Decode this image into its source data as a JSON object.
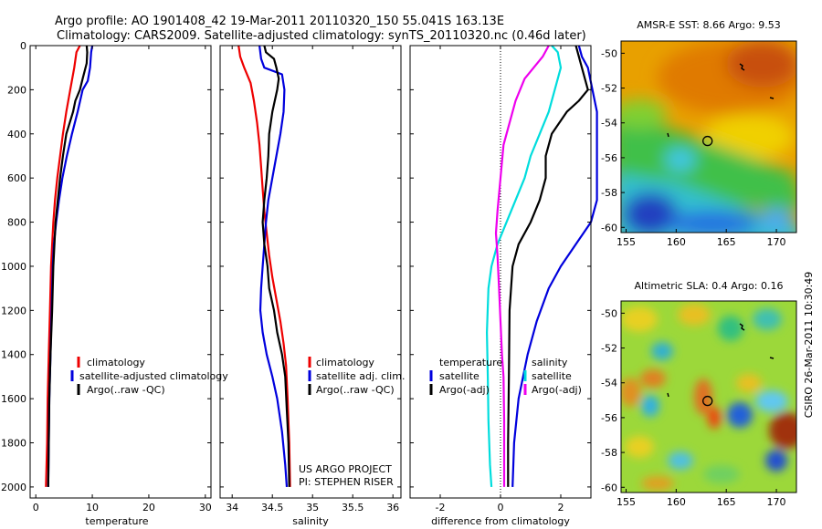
{
  "header": {
    "line1": "Argo profile: AO 1901408_42 19-Mar-2011 20110320_150 55.041S 163.13E",
    "line2": "Climatology: CARS2009. Satellite-adjusted climatology: synTS_20110320.nc (0.46d later)"
  },
  "credit": {
    "project": "US ARGO PROJECT",
    "pi": "PI: STEPHEN RISER",
    "stamp": "CSIRO 26-Mar-2011 10:30:49"
  },
  "colors": {
    "climatology": "#ee0000",
    "satellite": "#0000dd",
    "argo": "#000000",
    "sat_salinity": "#00dddd",
    "argo_salinity_diff": "#ee00ee"
  },
  "chart_data": [
    {
      "type": "line",
      "xlabel": "temperature",
      "xlim": [
        -1,
        31
      ],
      "xticks": [
        "0",
        "10",
        "20",
        "30"
      ],
      "ylim": [
        0,
        2050
      ],
      "yticks": [
        "0",
        "200",
        "400",
        "600",
        "800",
        "1000",
        "1200",
        "1400",
        "1600",
        "1800",
        "2000"
      ],
      "y_reversed": true,
      "legend": [
        "climatology",
        "satellite-adjusted climatology",
        "Argo(..raw -QC)"
      ],
      "series": [
        {
          "name": "climatology",
          "color": "#ee0000",
          "points": [
            [
              7.8,
              0
            ],
            [
              7.2,
              30
            ],
            [
              6.8,
              100
            ],
            [
              6.1,
              200
            ],
            [
              5.4,
              300
            ],
            [
              4.8,
              400
            ],
            [
              4.3,
              500
            ],
            [
              3.8,
              600
            ],
            [
              3.4,
              700
            ],
            [
              3.1,
              800
            ],
            [
              2.9,
              900
            ],
            [
              2.7,
              1000
            ],
            [
              2.5,
              1200
            ],
            [
              2.3,
              1400
            ],
            [
              2.1,
              1600
            ],
            [
              2.0,
              1800
            ],
            [
              1.8,
              2000
            ]
          ]
        },
        {
          "name": "satellite-adjusted climatology",
          "color": "#0000dd",
          "points": [
            [
              10.0,
              0
            ],
            [
              9.8,
              30
            ],
            [
              9.6,
              100
            ],
            [
              9.2,
              160
            ],
            [
              8.3,
              200
            ],
            [
              7.4,
              300
            ],
            [
              6.4,
              400
            ],
            [
              5.5,
              500
            ],
            [
              4.7,
              600
            ],
            [
              4.1,
              700
            ],
            [
              3.6,
              800
            ],
            [
              3.2,
              900
            ],
            [
              3.0,
              1000
            ],
            [
              2.8,
              1200
            ],
            [
              2.6,
              1400
            ],
            [
              2.4,
              1600
            ],
            [
              2.3,
              1800
            ],
            [
              2.2,
              2000
            ]
          ]
        },
        {
          "name": "Argo(..raw -QC)",
          "color": "#000000",
          "points": [
            [
              9.0,
              0
            ],
            [
              9.1,
              30
            ],
            [
              9.0,
              80
            ],
            [
              8.3,
              150
            ],
            [
              7.8,
              200
            ],
            [
              7.0,
              250
            ],
            [
              6.6,
              300
            ],
            [
              6.0,
              350
            ],
            [
              5.4,
              400
            ],
            [
              4.8,
              500
            ],
            [
              4.3,
              600
            ],
            [
              3.9,
              700
            ],
            [
              3.5,
              800
            ],
            [
              3.3,
              900
            ],
            [
              3.1,
              1000
            ],
            [
              2.9,
              1200
            ],
            [
              2.6,
              1400
            ],
            [
              2.4,
              1600
            ],
            [
              2.3,
              1800
            ],
            [
              2.2,
              2000
            ]
          ]
        }
      ]
    },
    {
      "type": "line",
      "xlabel": "salinity",
      "xlim": [
        33.85,
        36.1
      ],
      "xticks": [
        "34",
        "34.5",
        "35",
        "35.5",
        "36"
      ],
      "ylim": [
        0,
        2050
      ],
      "y_reversed": true,
      "legend": [
        "climatology",
        "satellite adj. clim.",
        "Argo(..raw -QC)"
      ],
      "series": [
        {
          "name": "climatology",
          "color": "#ee0000",
          "points": [
            [
              34.08,
              0
            ],
            [
              34.1,
              50
            ],
            [
              34.15,
              100
            ],
            [
              34.23,
              170
            ],
            [
              34.27,
              250
            ],
            [
              34.31,
              350
            ],
            [
              34.34,
              450
            ],
            [
              34.36,
              550
            ],
            [
              34.38,
              650
            ],
            [
              34.4,
              750
            ],
            [
              34.43,
              850
            ],
            [
              34.46,
              950
            ],
            [
              34.5,
              1050
            ],
            [
              34.55,
              1150
            ],
            [
              34.6,
              1250
            ],
            [
              34.64,
              1350
            ],
            [
              34.67,
              1450
            ],
            [
              34.69,
              1600
            ],
            [
              34.71,
              1800
            ],
            [
              34.72,
              2000
            ]
          ]
        },
        {
          "name": "satellite adj. clim.",
          "color": "#0000dd",
          "points": [
            [
              34.34,
              0
            ],
            [
              34.36,
              60
            ],
            [
              34.4,
              100
            ],
            [
              34.62,
              130
            ],
            [
              34.65,
              200
            ],
            [
              34.64,
              300
            ],
            [
              34.6,
              400
            ],
            [
              34.55,
              500
            ],
            [
              34.5,
              600
            ],
            [
              34.45,
              700
            ],
            [
              34.42,
              800
            ],
            [
              34.4,
              900
            ],
            [
              34.38,
              1000
            ],
            [
              34.36,
              1100
            ],
            [
              34.35,
              1200
            ],
            [
              34.38,
              1300
            ],
            [
              34.43,
              1400
            ],
            [
              34.5,
              1500
            ],
            [
              34.56,
              1600
            ],
            [
              34.62,
              1750
            ],
            [
              34.66,
              1900
            ],
            [
              34.68,
              2000
            ]
          ]
        },
        {
          "name": "Argo(..raw -QC)",
          "color": "#000000",
          "points": [
            [
              34.4,
              0
            ],
            [
              34.42,
              30
            ],
            [
              34.52,
              60
            ],
            [
              34.55,
              100
            ],
            [
              34.58,
              150
            ],
            [
              34.56,
              200
            ],
            [
              34.5,
              300
            ],
            [
              34.46,
              400
            ],
            [
              34.45,
              500
            ],
            [
              34.43,
              600
            ],
            [
              34.4,
              700
            ],
            [
              34.38,
              800
            ],
            [
              34.4,
              900
            ],
            [
              34.44,
              1000
            ],
            [
              34.46,
              1100
            ],
            [
              34.52,
              1200
            ],
            [
              34.56,
              1300
            ],
            [
              34.62,
              1400
            ],
            [
              34.66,
              1500
            ],
            [
              34.68,
              1650
            ],
            [
              34.7,
              1800
            ],
            [
              34.71,
              2000
            ]
          ]
        }
      ]
    },
    {
      "type": "line",
      "xlabel": "difference from climatology",
      "xlim": [
        -3,
        3
      ],
      "xticks": [
        "-2",
        "0",
        "2"
      ],
      "ylim": [
        0,
        2050
      ],
      "y_reversed": true,
      "zero_line": "dotted",
      "legend_left_title": "temperature",
      "legend_left": [
        "satellite",
        "Argo(-adj)"
      ],
      "legend_right_title": "salinity",
      "legend_right": [
        "satellite",
        "Argo(-adj)"
      ],
      "series": [
        {
          "name": "satellite",
          "group": "temperature",
          "color": "#0000dd",
          "points": [
            [
              2.6,
              0
            ],
            [
              2.7,
              50
            ],
            [
              2.9,
              100
            ],
            [
              3.2,
              300
            ],
            [
              3.2,
              700
            ],
            [
              3.0,
              800
            ],
            [
              2.5,
              900
            ],
            [
              2.0,
              1000
            ],
            [
              1.6,
              1100
            ],
            [
              1.2,
              1250
            ],
            [
              0.9,
              1400
            ],
            [
              0.6,
              1600
            ],
            [
              0.45,
              1800
            ],
            [
              0.4,
              2000
            ]
          ]
        },
        {
          "name": "Argo(-adj)",
          "group": "temperature",
          "color": "#000000",
          "points": [
            [
              2.5,
              0
            ],
            [
              2.6,
              50
            ],
            [
              2.7,
              100
            ],
            [
              2.8,
              150
            ],
            [
              2.9,
              200
            ],
            [
              2.6,
              250
            ],
            [
              2.2,
              300
            ],
            [
              1.7,
              400
            ],
            [
              1.5,
              500
            ],
            [
              1.5,
              600
            ],
            [
              1.3,
              700
            ],
            [
              1.0,
              800
            ],
            [
              0.6,
              900
            ],
            [
              0.4,
              1000
            ],
            [
              0.3,
              1200
            ],
            [
              0.28,
              1500
            ],
            [
              0.25,
              1800
            ],
            [
              0.25,
              2000
            ]
          ]
        },
        {
          "name": "satellite",
          "group": "salinity",
          "color": "#00dddd",
          "points": [
            [
              1.7,
              0
            ],
            [
              1.9,
              30
            ],
            [
              2.0,
              100
            ],
            [
              1.8,
              200
            ],
            [
              1.6,
              300
            ],
            [
              1.3,
              400
            ],
            [
              1.0,
              500
            ],
            [
              0.8,
              600
            ],
            [
              0.5,
              700
            ],
            [
              0.2,
              800
            ],
            [
              -0.1,
              900
            ],
            [
              -0.3,
              1000
            ],
            [
              -0.4,
              1100
            ],
            [
              -0.45,
              1300
            ],
            [
              -0.42,
              1500
            ],
            [
              -0.4,
              1700
            ],
            [
              -0.35,
              1900
            ],
            [
              -0.3,
              2000
            ]
          ]
        },
        {
          "name": "Argo(-adj)",
          "group": "salinity",
          "color": "#ee00ee",
          "points": [
            [
              1.6,
              0
            ],
            [
              1.4,
              50
            ],
            [
              0.8,
              150
            ],
            [
              0.5,
              250
            ],
            [
              0.3,
              350
            ],
            [
              0.1,
              450
            ],
            [
              0.0,
              600
            ],
            [
              -0.1,
              750
            ],
            [
              -0.15,
              850
            ],
            [
              -0.1,
              950
            ],
            [
              -0.05,
              1100
            ],
            [
              0.0,
              1250
            ],
            [
              0.05,
              1400
            ],
            [
              0.1,
              1500
            ],
            [
              0.12,
              1700
            ],
            [
              0.12,
              1850
            ],
            [
              0.12,
              2000
            ]
          ]
        }
      ]
    },
    {
      "type": "heatmap",
      "title": "AMSR-E SST: 8.66 Argo: 9.53",
      "xlim": [
        154.5,
        172
      ],
      "ylim": [
        -60.3,
        -49.3
      ],
      "xticks": [
        "155",
        "160",
        "165",
        "170"
      ],
      "yticks": [
        "-50",
        "-52",
        "-54",
        "-56",
        "-58",
        "-60"
      ],
      "argo_location": [
        163.13,
        -55.04
      ],
      "palette": "jet"
    },
    {
      "type": "heatmap",
      "title": "Altimetric SLA: 0.4 Argo: 0.16",
      "xlim": [
        154.5,
        172
      ],
      "ylim": [
        -60.3,
        -49.3
      ],
      "xticks": [
        "155",
        "160",
        "165",
        "170"
      ],
      "yticks": [
        "-50",
        "-52",
        "-54",
        "-56",
        "-58",
        "-60"
      ],
      "argo_location": [
        163.13,
        -55.04
      ],
      "palette": "jet"
    }
  ]
}
